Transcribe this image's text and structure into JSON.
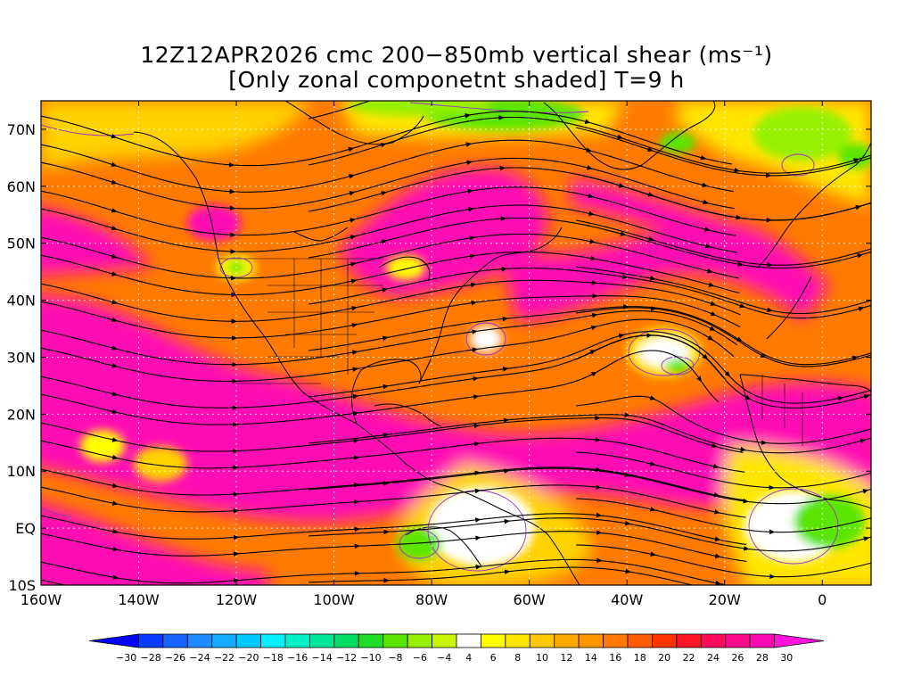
{
  "title": {
    "line1": "12Z12APR2026 cmc 200−850mb vertical shear (ms⁻¹)",
    "line2": "[Only zonal componetnt shaded] T=9 h"
  },
  "map": {
    "lat_labels": [
      "70N",
      "60N",
      "50N",
      "40N",
      "30N",
      "20N",
      "10N",
      "EQ",
      "10S"
    ],
    "lon_labels": [
      "160W",
      "140W",
      "120W",
      "100W",
      "80W",
      "60W",
      "40W",
      "20W",
      "0"
    ]
  },
  "colorbar": {
    "labels": [
      "−30",
      "−28",
      "−26",
      "−24",
      "−22",
      "−20",
      "−18",
      "−16",
      "−14",
      "−12",
      "−10",
      "−8",
      "−6",
      "−4",
      "4",
      "6",
      "8",
      "10",
      "12",
      "14",
      "16",
      "18",
      "20",
      "22",
      "24",
      "26",
      "28",
      "30"
    ],
    "colors": [
      "#0000ff",
      "#0a3cff",
      "#1664ff",
      "#1e8cff",
      "#14aaff",
      "#00c8ff",
      "#00f0ff",
      "#00f0c8",
      "#00e696",
      "#00dc64",
      "#1edc28",
      "#5ae600",
      "#96f000",
      "#c8f500",
      "#ffffff",
      "#ffff00",
      "#ffe600",
      "#ffc800",
      "#ffaa00",
      "#ff9600",
      "#ff7800",
      "#ff5a00",
      "#ff3200",
      "#ff1428",
      "#ff0a5a",
      "#ff0a8c",
      "#ff0ab4",
      "#ff14dc"
    ]
  }
}
